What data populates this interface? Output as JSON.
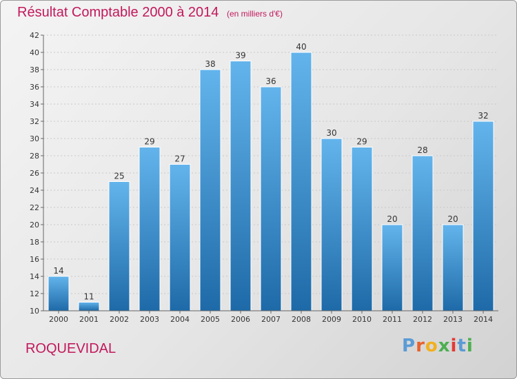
{
  "header": {
    "title": "Résultat Comptable 2000 à 2014",
    "subtitle": "(en milliers d'€)"
  },
  "footer": {
    "commune": "ROQUEVIDAL",
    "logo_letters": [
      "P",
      "r",
      "o",
      "x",
      "i",
      "t",
      "i"
    ]
  },
  "colors": {
    "title": "#c2185b",
    "bar_top": "#63b4ec",
    "bar_bottom": "#1e6aa8",
    "logo": [
      "#5b9bd5",
      "#e8612c",
      "#f2b01e",
      "#4caf50",
      "#e53935",
      "#5b9bd5",
      "#4caf50"
    ]
  },
  "chart_data": {
    "type": "bar",
    "title": "Résultat Comptable 2000 à 2014",
    "subtitle": "(en milliers d'€)",
    "xlabel": "",
    "ylabel": "",
    "ylim": [
      10,
      42
    ],
    "ytick_step": 2,
    "grid": true,
    "legend": "none",
    "categories": [
      "2000",
      "2001",
      "2002",
      "2003",
      "2004",
      "2005",
      "2006",
      "2007",
      "2008",
      "2009",
      "2010",
      "2011",
      "2012",
      "2013",
      "2014"
    ],
    "values": [
      14,
      11,
      25,
      29,
      27,
      38,
      39,
      36,
      40,
      30,
      29,
      20,
      28,
      20,
      32
    ]
  }
}
